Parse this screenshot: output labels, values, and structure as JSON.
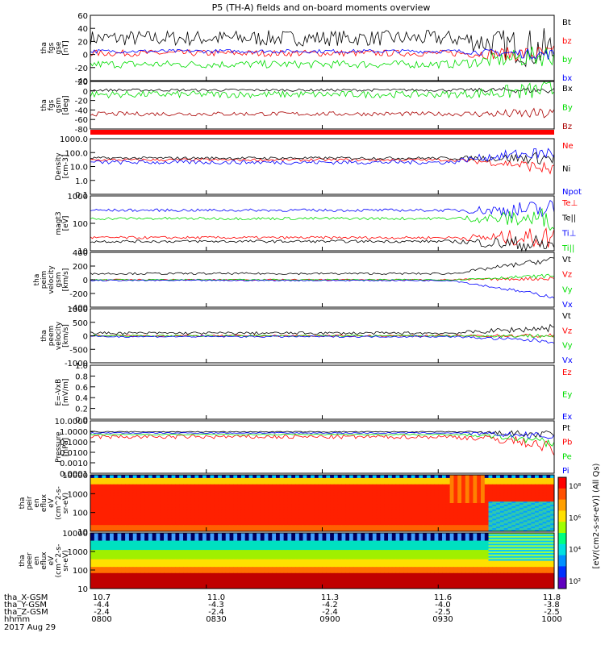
{
  "title": "P5 (TH-A) fields and on-board moments overview",
  "date_label": "2017 Aug 29",
  "ephemeris": {
    "row_labels": [
      "tha_X-GSM",
      "tha_Y-GSM",
      "tha_Z-GSM",
      "hhmm"
    ],
    "columns": [
      {
        "x": "10.7",
        "y": "-4.4",
        "z": "-2.4",
        "hhmm": "0800"
      },
      {
        "x": "11.0",
        "y": "-4.3",
        "z": "-2.4",
        "hhmm": "0830"
      },
      {
        "x": "11.3",
        "y": "-4.2",
        "z": "-2.4",
        "hhmm": "0900"
      },
      {
        "x": "11.6",
        "y": "-4.0",
        "z": "-2.5",
        "hhmm": "0930"
      },
      {
        "x": "11.8",
        "y": "-3.8",
        "z": "-2.5",
        "hhmm": "1000"
      }
    ]
  },
  "colorbar": {
    "label": "[eV/(cm2-s-sr-eV)] (All Qs)",
    "ticks": [
      "10²",
      "10⁴",
      "10⁶",
      "10⁸"
    ]
  },
  "chart_data": [
    {
      "type": "line",
      "ylabel_lines": [
        "tha",
        "fgs",
        "gse",
        "[nT]"
      ],
      "ylim": [
        -40,
        60
      ],
      "yticks": [
        "60",
        "40",
        "20",
        "0",
        "-20",
        "-40"
      ],
      "series": [
        {
          "name": "Bt",
          "color": "#000000",
          "base": 25,
          "amp": 12,
          "end_base": 5
        },
        {
          "name": "bz",
          "color": "#ff0000",
          "base": 2,
          "amp": 5,
          "end_base": 0
        },
        {
          "name": "by",
          "color": "#00dd00",
          "base": -15,
          "amp": 6,
          "end_base": 0
        },
        {
          "name": "bx",
          "color": "#0000ff",
          "base": 5,
          "amp": 3,
          "end_base": 0
        }
      ]
    },
    {
      "type": "line",
      "ylabel_lines": [
        "tha",
        "fgs",
        "gsm",
        "[deg]"
      ],
      "ylim": [
        -90,
        20
      ],
      "yticks": [
        "20",
        "0",
        "-20",
        "-40",
        "-60",
        "-80"
      ],
      "series": [
        {
          "name": "Bx",
          "color": "#000000",
          "base": 0,
          "amp": 3,
          "end_base": 0
        },
        {
          "name": "By",
          "color": "#00dd00",
          "base": -10,
          "amp": 8,
          "end_base": 0
        },
        {
          "name": "Bz",
          "color": "#aa0000",
          "base": -55,
          "amp": 5,
          "end_base": -55
        }
      ]
    },
    {
      "type": "line",
      "ylabel_lines": [
        "Density",
        "[cm-3]"
      ],
      "log": true,
      "ylim": [
        0.1,
        1000
      ],
      "yticks": [
        "1000.0",
        "100.0",
        "10.0",
        "1.0",
        "0.1"
      ],
      "series": [
        {
          "name": "Ne",
          "color": "#ff0000",
          "base": 30,
          "amp": 0.1,
          "end_base": 5
        },
        {
          "name": "Ni",
          "color": "#000000",
          "base": 40,
          "amp": 0.1,
          "end_base": 40
        },
        {
          "name": "Npot",
          "color": "#0000ff",
          "base": 20,
          "amp": 0.15,
          "end_base": 100
        }
      ]
    },
    {
      "type": "line",
      "ylabel_lines": [
        "magt3",
        "[eV]"
      ],
      "log": true,
      "ylim": [
        10,
        1000
      ],
      "yticks": [
        "1000",
        "100",
        "10"
      ],
      "series": [
        {
          "name": "Te⊥",
          "color": "#ff0000",
          "base": 30,
          "amp": 0.05,
          "end_base": 30
        },
        {
          "name": "Te||",
          "color": "#000000",
          "base": 22,
          "amp": 0.05,
          "end_base": 15
        },
        {
          "name": "Ti⊥",
          "color": "#0000ff",
          "base": 300,
          "amp": 0.05,
          "end_base": 300
        },
        {
          "name": "Ti||",
          "color": "#00dd00",
          "base": 150,
          "amp": 0.05,
          "end_base": 150
        }
      ]
    },
    {
      "type": "line",
      "ylabel_lines": [
        "tha",
        "peim",
        "velocity",
        "gsm",
        "[km/s]"
      ],
      "ylim": [
        -400,
        400
      ],
      "yticks": [
        "400",
        "200",
        "0",
        "-200",
        "-400"
      ],
      "series": [
        {
          "name": "Vt",
          "color": "#000000",
          "base": 90,
          "amp": 15,
          "end_base": 300
        },
        {
          "name": "Vz",
          "color": "#ff0000",
          "base": 0,
          "amp": 10,
          "end_base": 20
        },
        {
          "name": "Vy",
          "color": "#00dd00",
          "base": 0,
          "amp": 10,
          "end_base": 60
        },
        {
          "name": "Vx",
          "color": "#0000ff",
          "base": -10,
          "amp": 10,
          "end_base": -250
        }
      ]
    },
    {
      "type": "line",
      "ylabel_lines": [
        "tha",
        "peem",
        "velocity",
        "[km/s]"
      ],
      "ylim": [
        -1000,
        1000
      ],
      "yticks": [
        "1000",
        "500",
        "0",
        "-500",
        "-1000"
      ],
      "series": [
        {
          "name": "Vt",
          "color": "#000000",
          "base": 100,
          "amp": 50,
          "end_base": 300
        },
        {
          "name": "Vz",
          "color": "#ff0000",
          "base": 0,
          "amp": 30,
          "end_base": 0
        },
        {
          "name": "Vy",
          "color": "#00dd00",
          "base": 0,
          "amp": 30,
          "end_base": 0
        },
        {
          "name": "Vx",
          "color": "#0000ff",
          "base": -30,
          "amp": 30,
          "end_base": -200
        }
      ]
    },
    {
      "type": "line",
      "ylabel_lines": [
        "E=-VxB",
        "[mV/m]"
      ],
      "ylim": [
        0,
        1
      ],
      "yticks": [
        "1.0",
        "0.8",
        "0.6",
        "0.4",
        "0.2",
        "0.0"
      ],
      "series": [
        {
          "name": "Ez",
          "color": "#ff0000"
        },
        {
          "name": "Ey",
          "color": "#00dd00"
        },
        {
          "name": "Ex",
          "color": "#0000ff"
        }
      ]
    },
    {
      "type": "line",
      "ylabel_lines": [
        "Pressure",
        "[nPa]"
      ],
      "log": true,
      "ylim": [
        0.0001,
        10
      ],
      "yticks": [
        "10.0000",
        "1.0000",
        "0.1000",
        "0.0100",
        "0.0010",
        "0.0001"
      ],
      "series": [
        {
          "name": "Pt",
          "color": "#000000",
          "base": 0.9,
          "amp": 0.05,
          "end_base": 0.4
        },
        {
          "name": "Pb",
          "color": "#ff0000",
          "base": 0.3,
          "amp": 0.2,
          "end_base": 0.01
        },
        {
          "name": "Pe",
          "color": "#00dd00",
          "base": 0.5,
          "amp": 0.05,
          "end_base": 0.05
        },
        {
          "name": "Pi",
          "color": "#0000ff",
          "base": 0.7,
          "amp": 0.05,
          "end_base": 0.3
        }
      ]
    },
    {
      "type": "heatmap",
      "ylabel_lines": [
        "tha",
        "peir",
        "en",
        "eflux",
        "eV",
        "(cm^2-s-",
        "sr-eV)"
      ],
      "log": true,
      "ylim": [
        10,
        30000
      ],
      "yticks": [
        "10000",
        "1000",
        "100",
        "10"
      ]
    },
    {
      "type": "heatmap",
      "ylabel_lines": [
        "tha",
        "peer",
        "en",
        "eflux",
        "eV",
        "(cm^2-s-",
        "sr-eV)"
      ],
      "log": true,
      "ylim": [
        7,
        30000
      ],
      "yticks": [
        "10000",
        "1000",
        "100",
        "10"
      ]
    }
  ]
}
